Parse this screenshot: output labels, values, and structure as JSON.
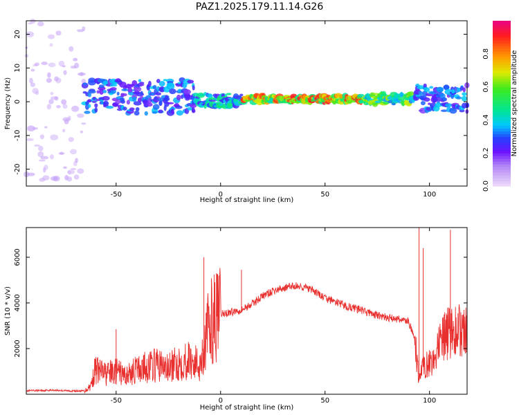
{
  "title": "PAZ1.2025.179.11.14.G26",
  "chart_data": [
    {
      "type": "heatmap",
      "xlabel": "Height of straight line (km)",
      "ylabel": "Frequency (Hz)",
      "xlim": [
        -93,
        118
      ],
      "ylim": [
        -25,
        24
      ],
      "xticks": [
        -50,
        0,
        50,
        100
      ],
      "yticks": [
        -20,
        -10,
        0,
        10,
        20
      ],
      "colorbar": {
        "label": "Normalized spectral amplitude",
        "range": [
          0,
          1
        ],
        "ticks": [
          0.0,
          0.2,
          0.4,
          0.6,
          0.8
        ]
      },
      "regions": [
        {
          "x": [
            -93,
            -65
          ],
          "f_center": 0,
          "f_halfwidth": 24,
          "amplitude": 0.08
        },
        {
          "x": [
            -65,
            -12
          ],
          "f_center": 1.5,
          "f_halfwidth": 5,
          "amplitude": 0.3
        },
        {
          "x": [
            -12,
            10
          ],
          "f_center": 0.5,
          "f_halfwidth": 2,
          "amplitude": 0.4
        },
        {
          "x": [
            10,
            68
          ],
          "f_center": 0.8,
          "f_halfwidth": 1,
          "amplitude": 0.75
        },
        {
          "x": [
            68,
            93
          ],
          "f_center": 0.8,
          "f_halfwidth": 1.5,
          "amplitude": 0.55
        },
        {
          "x": [
            93,
            118
          ],
          "f_center": 1,
          "f_halfwidth": 4,
          "amplitude": 0.3
        }
      ]
    },
    {
      "type": "line",
      "xlabel": "Height of straight line (km)",
      "ylabel": "SNR (10 * v/v)",
      "xlim": [
        -93,
        118
      ],
      "ylim": [
        0,
        7300
      ],
      "xticks": [
        -50,
        0,
        50,
        100
      ],
      "yticks": [
        2000,
        4000,
        6000
      ],
      "color": "#e8302f",
      "x": [
        -93,
        -80,
        -70,
        -65,
        -62,
        -60,
        -55,
        -50,
        -45,
        -40,
        -35,
        -30,
        -25,
        -20,
        -15,
        -10,
        -8,
        -6,
        -4,
        -2,
        0,
        5,
        10,
        15,
        20,
        25,
        30,
        35,
        40,
        45,
        50,
        55,
        60,
        65,
        70,
        75,
        80,
        85,
        90,
        93,
        95,
        97,
        100,
        103,
        105,
        108,
        110,
        113,
        116,
        118
      ],
      "y": [
        150,
        180,
        140,
        150,
        400,
        1100,
        900,
        1000,
        800,
        1100,
        1200,
        1300,
        1100,
        1400,
        1500,
        1300,
        2000,
        2800,
        3300,
        3400,
        3500,
        3600,
        3700,
        3950,
        4300,
        4500,
        4650,
        4750,
        4700,
        4500,
        4200,
        4050,
        3850,
        3750,
        3600,
        3450,
        3350,
        3300,
        3200,
        2300,
        600,
        1200,
        1400,
        1600,
        2200,
        2600,
        2750,
        2800,
        2700,
        2600
      ],
      "spikes": [
        [
          -50,
          2850
        ],
        [
          -8,
          6000
        ],
        [
          10,
          5450
        ],
        [
          95,
          7300
        ],
        [
          97,
          6400
        ],
        [
          110,
          7200
        ]
      ]
    }
  ]
}
